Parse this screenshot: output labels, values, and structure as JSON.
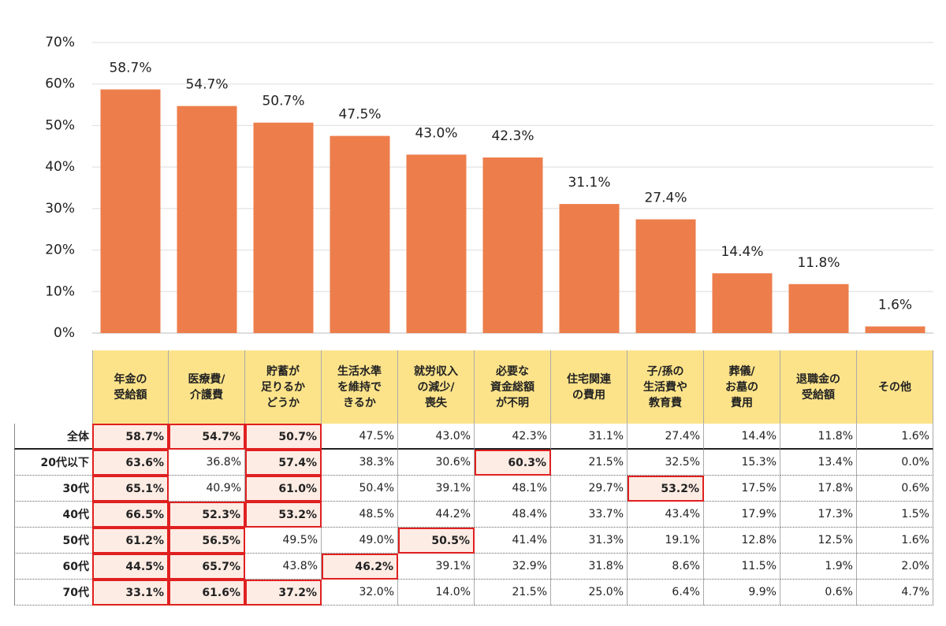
{
  "chart_data": {
    "type": "bar",
    "categories": [
      "年金の\n受給額",
      "医療費/\n介護費",
      "貯蓄が\n足りるか\nどうか",
      "生活水準\nを維持で\nきるか",
      "就労収入\nの減少/\n喪失",
      "必要な\n資金総額\nが不明",
      "住宅関連\nの費用",
      "子/孫の\n生活費や\n教育費",
      "葬儀/\nお墓の\n費用",
      "退職金の\n受給額",
      "その他"
    ],
    "values": [
      58.7,
      54.7,
      50.7,
      47.5,
      43.0,
      42.3,
      31.1,
      27.4,
      14.4,
      11.8,
      1.6
    ],
    "value_labels": [
      "58.7%",
      "54.7%",
      "50.7%",
      "47.5%",
      "43.0%",
      "42.3%",
      "31.1%",
      "27.4%",
      "14.4%",
      "11.8%",
      "1.6%"
    ],
    "color": "#ED7D4B",
    "ylim": [
      0,
      70
    ],
    "yticks": [
      {
        "value": 0,
        "label": "0%"
      },
      {
        "value": 10,
        "label": "10%"
      },
      {
        "value": 20,
        "label": "20%"
      },
      {
        "value": 30,
        "label": "30%"
      },
      {
        "value": 40,
        "label": "40%"
      },
      {
        "value": 50,
        "label": "50%"
      },
      {
        "value": 60,
        "label": "60%"
      },
      {
        "value": 70,
        "label": "70%"
      }
    ],
    "grid": true
  },
  "table": {
    "row_labels": [
      "全体",
      "20代以下",
      "30代",
      "40代",
      "50代",
      "60代",
      "70代"
    ],
    "rows": [
      [
        "58.7%",
        "54.7%",
        "50.7%",
        "47.5%",
        "43.0%",
        "42.3%",
        "31.1%",
        "27.4%",
        "14.4%",
        "11.8%",
        "1.6%"
      ],
      [
        "63.6%",
        "36.8%",
        "57.4%",
        "38.3%",
        "30.6%",
        "60.3%",
        "21.5%",
        "32.5%",
        "15.3%",
        "13.4%",
        "0.0%"
      ],
      [
        "65.1%",
        "40.9%",
        "61.0%",
        "50.4%",
        "39.1%",
        "48.1%",
        "29.7%",
        "53.2%",
        "17.5%",
        "17.8%",
        "0.6%"
      ],
      [
        "66.5%",
        "52.3%",
        "53.2%",
        "48.5%",
        "44.2%",
        "48.4%",
        "33.7%",
        "43.4%",
        "17.9%",
        "17.3%",
        "1.5%"
      ],
      [
        "61.2%",
        "56.5%",
        "49.5%",
        "49.0%",
        "50.5%",
        "41.4%",
        "31.3%",
        "19.1%",
        "12.8%",
        "12.5%",
        "1.6%"
      ],
      [
        "44.5%",
        "65.7%",
        "43.8%",
        "46.2%",
        "39.1%",
        "32.9%",
        "31.8%",
        "8.6%",
        "11.5%",
        "1.9%",
        "2.0%"
      ],
      [
        "33.1%",
        "61.6%",
        "37.2%",
        "32.0%",
        "14.0%",
        "21.5%",
        "25.0%",
        "6.4%",
        "9.9%",
        "0.6%",
        "4.7%"
      ]
    ],
    "highlight": [
      [
        0,
        1,
        2
      ],
      [
        0,
        2,
        5
      ],
      [
        0,
        2,
        7
      ],
      [
        0,
        1,
        2
      ],
      [
        0,
        1,
        4
      ],
      [
        0,
        1,
        3
      ],
      [
        0,
        1,
        2
      ]
    ],
    "header_color": "#FCE38A",
    "highlight_color": "#FDECE4",
    "highlight_border": "#E02020"
  }
}
